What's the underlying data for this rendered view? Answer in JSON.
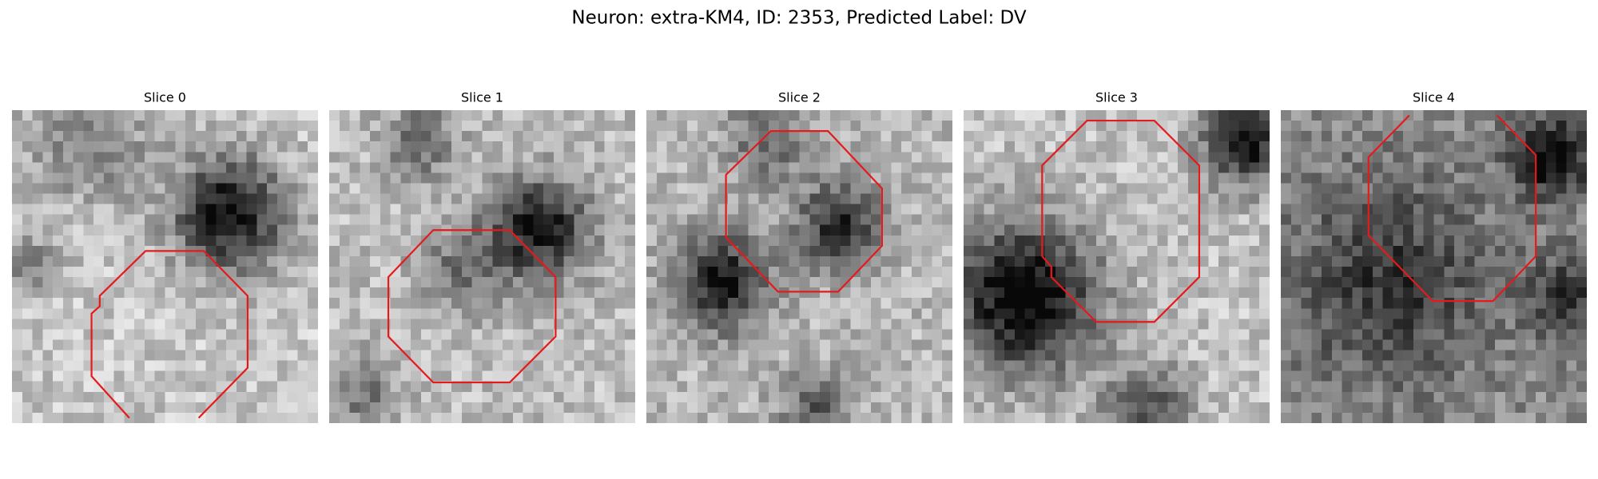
{
  "header": {
    "title": "Neuron: extra-KM4, ID: 2353, Predicted Label: DV"
  },
  "panels": [
    {
      "title": "Slice 0"
    },
    {
      "title": "Slice 1"
    },
    {
      "title": "Slice 2"
    },
    {
      "title": "Slice 3"
    },
    {
      "title": "Slice 4"
    }
  ]
}
